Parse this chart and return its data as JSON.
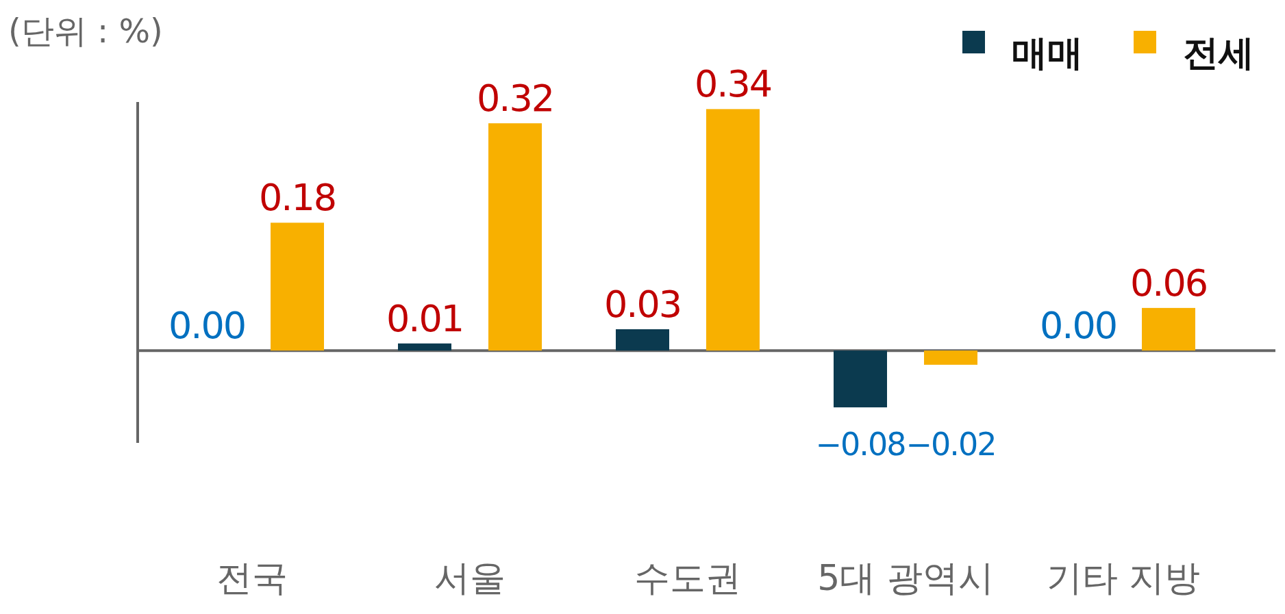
{
  "chart_data": {
    "type": "bar",
    "categories": [
      "전국",
      "서울",
      "수도권",
      "5대 광역시",
      "기타 지방"
    ],
    "series": [
      {
        "name": "매매",
        "color": "#0b3a4f",
        "values": [
          0,
          0.01,
          0.03,
          -0.08,
          0
        ],
        "value_labels": [
          "0.00",
          "0.01",
          "0.03",
          "−0.08",
          "0.00"
        ]
      },
      {
        "name": "전세",
        "color": "#f8b000",
        "values": [
          0.18,
          0.32,
          0.34,
          -0.02,
          0.06
        ],
        "value_labels": [
          "0.18",
          "0.32",
          "0.34",
          "−0.02",
          "0.06"
        ]
      }
    ],
    "ylim": [
      -0.13,
      0.35
    ],
    "legend": "top right",
    "tick_labels": "x",
    "annotations": [
      "(단위 : %)"
    ]
  }
}
